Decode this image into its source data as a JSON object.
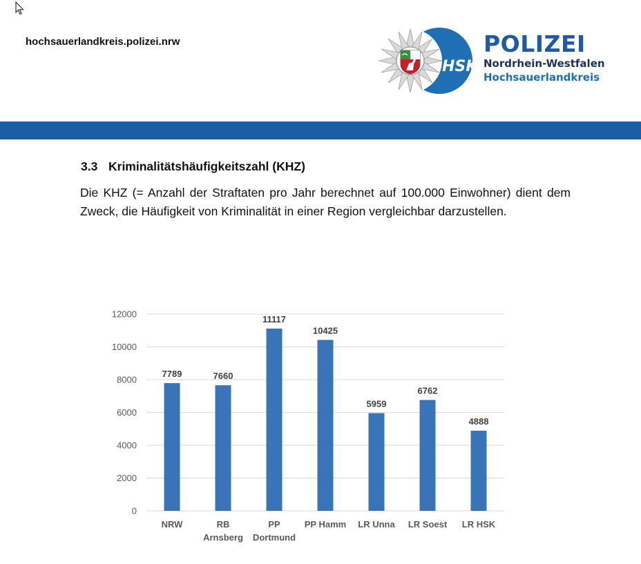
{
  "header": {
    "site_url": "hochsauerlandkreis.polizei.nrw",
    "logo": {
      "title": "POLIZEI",
      "subtitle1": "Nordrhein-Westfalen",
      "subtitle2": "Hochsauerlandkreis",
      "badge_text": "HSK",
      "brand_color": "#1f5aa6",
      "band_color": "#1d5ea2"
    }
  },
  "section": {
    "number": "3.3",
    "title": "Kriminalitätshäufigkeitszahl (KHZ)",
    "paragraph": "Die KHZ (= Anzahl der Straftaten pro Jahr berechnet auf 100.000 Einwohner) dient dem Zweck, die Häufigkeit von Kriminalität in einer Region vergleichbar darzustellen."
  },
  "chart_data": {
    "type": "bar",
    "categories": [
      "NRW",
      "RB Arnsberg",
      "PP Dortmund",
      "PP Hamm",
      "LR Unna",
      "LR Soest",
      "LR HSK"
    ],
    "category_lines": [
      [
        "NRW"
      ],
      [
        "RB",
        "Arnsberg"
      ],
      [
        "PP",
        "Dortmund"
      ],
      [
        "PP Hamm"
      ],
      [
        "LR Unna"
      ],
      [
        "LR Soest"
      ],
      [
        "LR HSK"
      ]
    ],
    "values": [
      7789,
      7660,
      11117,
      10425,
      5959,
      6762,
      4888
    ],
    "value_labels": [
      "7789",
      "7660",
      "11117",
      "10425",
      "5959",
      "6762",
      "4888"
    ],
    "yticks": [
      "0",
      "2000",
      "4000",
      "6000",
      "8000",
      "10000",
      "12000"
    ],
    "ylim": [
      0,
      12000
    ],
    "grid": true,
    "bar_color": "#3a74b8",
    "title": "",
    "xlabel": "",
    "ylabel": ""
  }
}
